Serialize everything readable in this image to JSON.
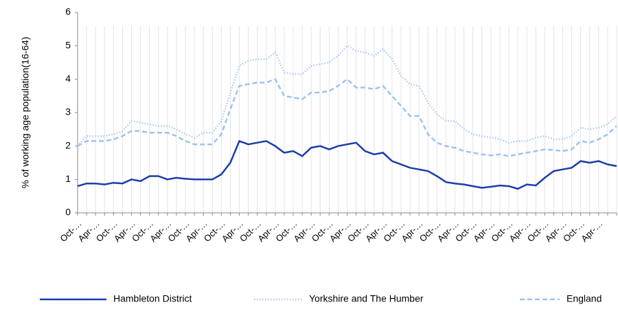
{
  "chart_data": {
    "type": "line",
    "ylabel": "% of working age population(16-64)",
    "categories": [
      "Oct-…",
      null,
      "Apr-…",
      null,
      "Oct-…",
      null,
      "Apr-…",
      null,
      "Oct-…",
      null,
      "Apr-…",
      null,
      "Oct-…",
      null,
      "Apr-…",
      null,
      "Oct-…",
      null,
      "Apr-…",
      null,
      "Oct-…",
      null,
      "Apr-…",
      null,
      "Oct-…",
      null,
      "Apr-…",
      null,
      "Oct-…",
      null,
      "Apr-…",
      null,
      "Oct-…",
      null,
      "Apr-…",
      null,
      "Oct-…",
      null,
      "Apr-…",
      null,
      "Oct-…",
      null,
      "Apr-…",
      null,
      "Oct-…",
      null,
      "Apr-…",
      null,
      "Oct-…",
      null,
      "Apr-…",
      null,
      "Oct-…",
      null,
      "Apr-…",
      null,
      "Oct-…",
      null,
      "Apr-…",
      null,
      null
    ],
    "series": [
      {
        "name": "Hambleton District",
        "color": "#1a3caa",
        "style": "solid",
        "values": [
          0.8,
          0.88,
          0.88,
          0.85,
          0.9,
          0.88,
          1.0,
          0.95,
          1.1,
          1.1,
          1.0,
          1.05,
          1.02,
          1.0,
          1.0,
          1.0,
          1.15,
          1.5,
          2.15,
          2.05,
          2.1,
          2.15,
          2.0,
          1.8,
          1.85,
          1.7,
          1.95,
          2.0,
          1.9,
          2.0,
          2.05,
          2.1,
          1.85,
          1.75,
          1.8,
          1.55,
          1.45,
          1.35,
          1.3,
          1.25,
          1.1,
          0.92,
          0.88,
          0.85,
          0.8,
          0.75,
          0.78,
          0.82,
          0.8,
          0.72,
          0.85,
          0.82,
          1.05,
          1.25,
          1.3,
          1.35,
          1.55,
          1.5,
          1.55,
          1.45,
          1.4
        ]
      },
      {
        "name": "Yorkshire and The Humber",
        "color": "#a9c9f0",
        "style": "dotted",
        "values": [
          2.0,
          2.3,
          2.3,
          2.3,
          2.35,
          2.45,
          2.75,
          2.7,
          2.65,
          2.6,
          2.6,
          2.5,
          2.35,
          2.25,
          2.4,
          2.4,
          2.75,
          3.6,
          4.4,
          4.55,
          4.6,
          4.6,
          4.8,
          4.2,
          4.15,
          4.15,
          4.4,
          4.45,
          4.5,
          4.7,
          5.0,
          4.85,
          4.8,
          4.7,
          4.9,
          4.6,
          4.1,
          3.85,
          3.8,
          3.3,
          2.95,
          2.75,
          2.75,
          2.5,
          2.35,
          2.3,
          2.25,
          2.2,
          2.1,
          2.15,
          2.15,
          2.25,
          2.3,
          2.2,
          2.2,
          2.3,
          2.55,
          2.5,
          2.55,
          2.65,
          2.9
        ]
      },
      {
        "name": "England",
        "color": "#9cc3ee",
        "style": "dashed",
        "values": [
          2.0,
          2.15,
          2.15,
          2.15,
          2.2,
          2.3,
          2.45,
          2.45,
          2.4,
          2.4,
          2.4,
          2.3,
          2.15,
          2.05,
          2.05,
          2.05,
          2.35,
          3.1,
          3.8,
          3.85,
          3.9,
          3.9,
          4.0,
          3.5,
          3.45,
          3.4,
          3.6,
          3.6,
          3.65,
          3.8,
          4.0,
          3.75,
          3.75,
          3.7,
          3.8,
          3.5,
          3.2,
          2.9,
          2.9,
          2.35,
          2.1,
          2.0,
          1.95,
          1.85,
          1.8,
          1.75,
          1.72,
          1.75,
          1.7,
          1.75,
          1.8,
          1.85,
          1.9,
          1.88,
          1.85,
          1.9,
          2.15,
          2.1,
          2.2,
          2.35,
          2.6
        ]
      }
    ],
    "ylim": [
      0,
      6
    ],
    "yticks": [
      0,
      1,
      2,
      3,
      4,
      5,
      6
    ],
    "legend": "bottom"
  }
}
